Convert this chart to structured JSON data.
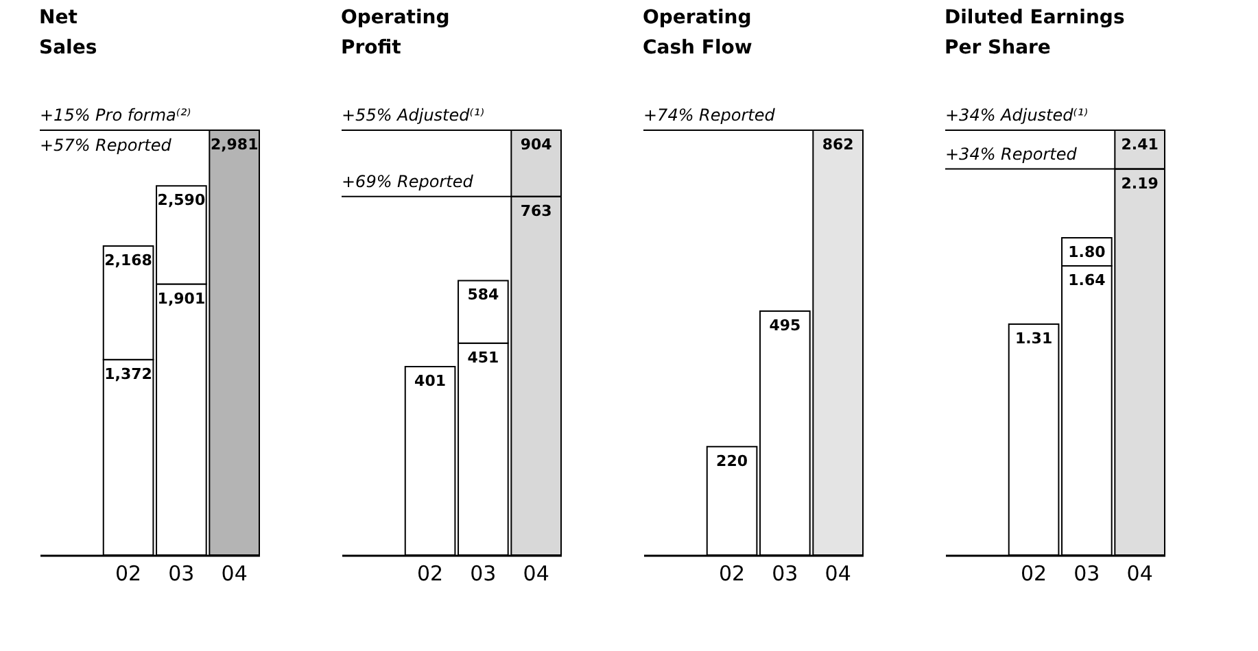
{
  "chart_data": [
    {
      "type": "bar",
      "title": "Net Sales",
      "categories": [
        "02",
        "03",
        "04"
      ],
      "stacked": true,
      "series": [
        {
          "colors": [
            "#ffffff",
            "#ffffff",
            "#b4b4b4"
          ],
          "values": [
            1372,
            1901,
            2981
          ],
          "value_labels": [
            "1,372",
            "1,901",
            "2,981"
          ]
        },
        {
          "colors": [
            "#ffffff",
            "#ffffff",
            null
          ],
          "values": [
            796,
            689,
            null
          ]
        }
      ],
      "totals": [
        "2,168",
        "2,590",
        null
      ],
      "ref_lines": [
        {
          "axis": "y",
          "value": 2981,
          "label": "+15% Pro forma⁽²⁾"
        }
      ],
      "annotations": [
        {
          "text": "+57% Reported",
          "y": 2981
        }
      ]
    },
    {
      "type": "bar",
      "title": "Operating Profit",
      "categories": [
        "02",
        "03",
        "04"
      ],
      "stacked": true,
      "series": [
        {
          "colors": [
            "#ffffff",
            "#ffffff",
            "#d8d8d8"
          ],
          "values": [
            401,
            451,
            763
          ],
          "value_labels": [
            "401",
            "451",
            "763"
          ]
        },
        {
          "colors": [
            null,
            "#ffffff",
            "#d8d8d8"
          ],
          "values": [
            null,
            133,
            141
          ]
        }
      ],
      "totals": [
        null,
        "584",
        "904"
      ],
      "ref_lines": [
        {
          "axis": "y",
          "value": 904,
          "label": "+55% Adjusted⁽¹⁾"
        },
        {
          "axis": "y",
          "value": 763,
          "label": "+69% Reported"
        }
      ]
    },
    {
      "type": "bar",
      "title": "Operating Cash Flow",
      "categories": [
        "02",
        "03",
        "04"
      ],
      "data_labels": true,
      "series": [
        {
          "colors": [
            "#ffffff",
            "#ffffff",
            "#e4e4e4"
          ],
          "values": [
            220,
            495,
            862
          ]
        }
      ],
      "ref_lines": [
        {
          "axis": "y",
          "value": 862,
          "label": "+74% Reported"
        }
      ]
    },
    {
      "type": "bar",
      "title": "Diluted Earnings Per Share",
      "categories": [
        "02",
        "03",
        "04"
      ],
      "stacked": true,
      "series": [
        {
          "colors": [
            "#ffffff",
            "#ffffff",
            "#dddddd"
          ],
          "values": [
            1.31,
            1.64,
            2.19
          ],
          "value_labels": [
            "1.31",
            "1.64",
            "2.19"
          ]
        },
        {
          "colors": [
            null,
            "#ffffff",
            "#dddddd"
          ],
          "values": [
            null,
            0.16,
            0.22
          ]
        }
      ],
      "totals": [
        null,
        "1.80",
        "2.41"
      ],
      "ref_lines": [
        {
          "axis": "y",
          "value": 2.41,
          "label": "+34% Adjusted⁽¹⁾"
        },
        {
          "axis": "y",
          "value": 2.19,
          "label": "+34% Reported"
        }
      ]
    }
  ]
}
